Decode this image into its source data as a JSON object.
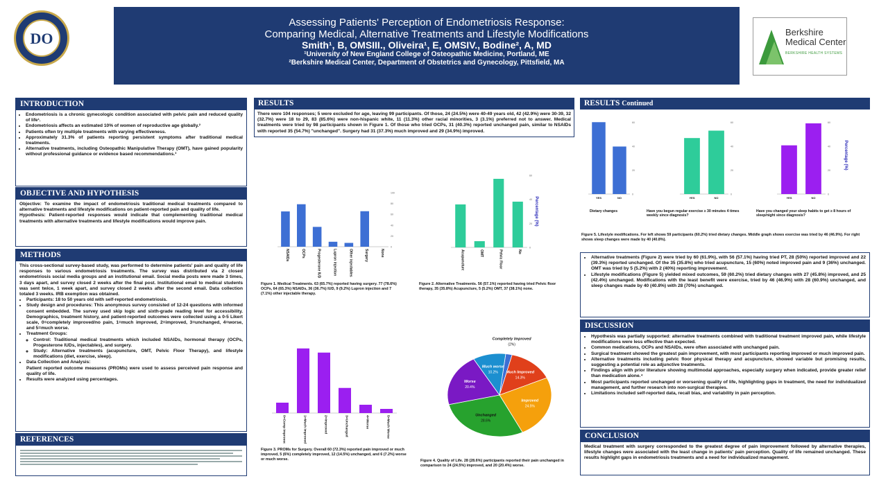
{
  "header": {
    "title_line1": "Assessing Patients' Perception of Endometriosis Response:",
    "title_line2": "Comparing Medical, Alternative Treatments and Lifestyle Modifications",
    "authors": "Smith¹, B, OMSIII., Oliveira¹, E, OMSIV., Bodine², A, MD",
    "aff1": "¹University of New England College of Osteopathic Medicine, Portland, ME",
    "aff2": "²Berkshire Medical Center, Department of Obstetrics and Gynecology, Pittsfield, MA",
    "left_logo_text": "DO",
    "right_logo_line1": "Berkshire",
    "right_logo_line2": "Medical Center",
    "right_logo_line3": "BERKSHIRE HEALTH SYSTEMS"
  },
  "intro": {
    "heading": "INTRODUCTION",
    "bullets": [
      "Endometriosis is a chronic gynecologic condition associated with pelvic pain and reduced quality of life¹.",
      "Endometriosis affects an estimated 10% of women of reproductive age globally.²",
      "Patients often try multiple treatments with varying effectiveness.",
      "Approximately 31.3% of patients reporting persistent symptoms after traditional medical treatments.",
      "Alternative treatments, including Osteopathic Manipulative Therapy (OMT), have gained popularity without professional guidance or evidence based recommendations.³"
    ]
  },
  "objective": {
    "heading": "OBJECTIVE AND HYPOTHESIS",
    "objective": "Objective: To examine the impact of endometriosis traditional medical treatments compared to alternative treatments and lifestyle modifications on patient-reported pain and quality of life.",
    "hypothesis": "Hypothesis: Patient-reported responses would indicate that complementing traditional medical treatments with alternative treatments and lifestyle modifications would improve pain."
  },
  "methods": {
    "heading": "METHODS",
    "para": "This cross-sectional survey-based study, was performed to determine patients' pain and quality of life responses to various endometriosis treatments. The survey was distributed via 2 closed endometriosis social media groups and an institutional email. Social media posts were made 3 times, 3 days apart, and survey closed 2 weeks after the final post. Institutional email to medical students was sent twice, 1 week apart, and survey closed 2 weeks after the second email. Data collection totaled 3 weeks. IRB exemption was obtained.",
    "participants": "Participants: 18 to 50 years old with self-reported endometriosis.",
    "design": "Study design and procedures: This anonymous survey consisted of 12-24 questions with informed consent embedded. The survey used skip logic and sixth-grade reading level for accessibility. Demographics, treatment history, and patient-reported outcomes were collected using a 0-5 Likert scale, 0=completely improved/no pain, 1=much improved, 2=improved, 3=unchanged, 4=worse, and 5=much worse.",
    "groups": "Treatment Groups:",
    "control": "Control: Traditional medical treatments which included NSAIDs, hormonal therapy (OCPs, Progesterone IUDs, injectables), and surgery.",
    "study": "Study: Alternative treatments (acupuncture, OMT, Pelvic Floor Therapy), and lifestyle modifications (diet, exercise, sleep).",
    "collection": "Data Collection and Analysis:",
    "collection_text": "Patient reported outcome measures (PROMs) were used to assess perceived pain response and quality of life.",
    "analysis": "Results were analyzed using percentages."
  },
  "references": {
    "heading": "REFERENCES"
  },
  "results": {
    "heading": "RESULTS",
    "para": "There were 104 responses; 5 were excluded for age, leaving 99 participants. Of those, 24 (24.5%) were 40-49 years old, 42 (42.9%) were 30-39, 32 (32.7%) were 18 to 29, 83 (85.6%) were non-hispanic white, 11 (11.3%) other racial minorities, 3 (3.1%) preferred not to answer. Medical treatments were tried by 98 participants shown in Figure 1. Of those who tried OCPs, 31 (40.3%) reported unchanged pain, similar to NSAIDs with reported 35 (54.7%) \"unchanged\". Surgery had 31 (37.3%) much improved and 29 (34.9%) improved.",
    "fig1": "Figure 1. Medical Treatments. 63 (65.7%) reported having surgery. 77 (78.6%) OCPs, 64 (65.3%) NSAIDs, 36 (36.7%) IUD, 9 (9.2%) Lupron injection and 7 (7.1%) other injectable therapy.",
    "fig2": "Figure 2. Alternative Treatments. 56 (57.1%) reported having tried Pelvic floor therapy, 35 (35.8%) Acupuncture, 5 (5.2%) OMT, 37 (38.1%) none.",
    "fig3": "Figure 3. PROMs for Surgery. Overall 60 (72.3%) reported pain improved or much improved, 5 (6%) completely improved, 12 (14.5%) unchanged, and 6 (7.2%) worse or much worse.",
    "fig4": "Figure 4. Quality of Life. 28 (28.6%) participants reported their pain unchanged in comparison to 24 (24.5%) improved, and 20 (20.4%) worse.",
    "ylabel": "Percentage (%)"
  },
  "results_continued": {
    "heading": "RESULTS",
    "heading_suffix": "Continued",
    "q1": "Dietary changes",
    "q2": "Have you begun regular exercise ≥ 30 minutes 4 times weekly since diagnosis?",
    "q3": "Have you changed your sleep habits to get ≥ 8 hours of sleep/night since diagnosis?",
    "fig5": "Figure 5. Lifestyle modifications. For left shows 59 participants (60.2%) tried dietary changes. Middle graph shows exercise was tried by 46 (46.9%). For right shows sleep changes were made by 40 (40.8%).",
    "bullets": [
      "Alternative treatments (Figure 2) were tried by 60 (61.9%), with 56 (57.1%) having tried PT, 28 (50%) reported improved and 22 (39.3%) reported unchanged. Of the 35 (35.8%) who tried acupuncture, 15 (60%) noted improved pain and 9 (36%) unchanged. OMT was tried by 5 (5.2%) with 2 (40%) reporting improvement.",
      "Lifestyle modifications (Figure 5) yielded mixed outcomes, 59 (60.2%) tried dietary changes with 27 (45.8%) improved, and 25 (42.4%) unchanged. Modifications with the least benefit were exercise, tried by 46 (46.9%) with 28 (60.9%) unchanged, and sleep changes made by 40 (40.8%) with 28 (70%) unchanged."
    ]
  },
  "discussion": {
    "heading": "DISCUSSION",
    "bullets": [
      "Hypothesis was partially supported: alternative treatments combined with traditional treatment improved pain, while lifestyle modifications were less effective than expected.",
      "Common medications, OCPs and NSAIDs, were often associated with unchanged pain.",
      "Surgical treatment showed the greatest pain improvement, with most participants reporting improved or much improved pain.",
      "Alternative treatments including pelvic floor physical therapy and acupuncture, showed variable but promising results, suggesting a potential role as adjunctive treatments.",
      "Findings align with prior literature showing multimodal approaches, especially surgery when indicated, provide greater relief than medication alone.⁴",
      "Most participants reported unchanged or worsening quality of life, highlighting gaps in treatment, the need for individualized management, and further research into non-surgical therapies.",
      "Limitations included self-reported data, recall bias, and variability in pain perception."
    ]
  },
  "conclusion": {
    "heading": "CONCLUSION",
    "text": "Medical treatment with surgery corresponded to the greatest degree of pain improvement followed by alternative therapies, lifestyle changes were associated with the least change in patients' pain perception. Quality of life remained unchanged. These results highlight gaps in endometriosis treatments and a need for individualized management."
  },
  "chart_data": [
    {
      "type": "bar",
      "categories": [
        "NSAIDs",
        "OCPs",
        "Progesterone IUD",
        "Lupron injection",
        "Other injectables",
        "Surgery",
        "None"
      ],
      "values": [
        65.3,
        78.6,
        36.7,
        9.2,
        7.1,
        65.7,
        0
      ],
      "ylim": [
        0,
        100
      ],
      "color": "#3d6fd4"
    },
    {
      "type": "bar",
      "categories": [
        "Acupuncture",
        "OMT",
        "Pelvic Floor PT",
        "No"
      ],
      "values": [
        35.8,
        5.2,
        57.1,
        38.1
      ],
      "ylim": [
        0,
        60
      ],
      "color": "#2ecc9a"
    },
    {
      "type": "bar",
      "categories": [
        "0=Comp Improved",
        "1=Much Improved",
        "2=Improved",
        "3=Unchanged",
        "4=Worse",
        "5=Much Worse"
      ],
      "values": [
        6,
        37.3,
        34.9,
        14.5,
        4.8,
        2.4
      ],
      "ylim": [
        0,
        40
      ],
      "color": "#9b1ff0"
    },
    {
      "type": "pie",
      "categories": [
        "Completely Improved",
        "Much Improved",
        "Improved",
        "Unchanged",
        "Worse",
        "Much worse"
      ],
      "labels": [
        "(2%)",
        "14.3%",
        "24.5%",
        "28.6%",
        "20.4%",
        "10.2%"
      ],
      "values": [
        2,
        14.3,
        24.5,
        28.6,
        20.4,
        10.2
      ],
      "colors": [
        "#3d6fd4",
        "#e0401b",
        "#f5a00c",
        "#27a22e",
        "#7a19c4",
        "#1c8fd0"
      ]
    },
    {
      "type": "bar",
      "categories": [
        "YES",
        "NO"
      ],
      "values": [
        60.2,
        39.8
      ],
      "ylim": [
        0,
        65
      ],
      "color": "#3d6fd4"
    },
    {
      "type": "bar",
      "categories": [
        "YES",
        "NO"
      ],
      "values": [
        46.9,
        53.1
      ],
      "ylim": [
        0,
        65
      ],
      "color": "#2ecc9a"
    },
    {
      "type": "bar",
      "categories": [
        "YES",
        "NO"
      ],
      "values": [
        40.8,
        59.2
      ],
      "ylim": [
        0,
        65
      ],
      "color": "#9b1ff0"
    }
  ]
}
